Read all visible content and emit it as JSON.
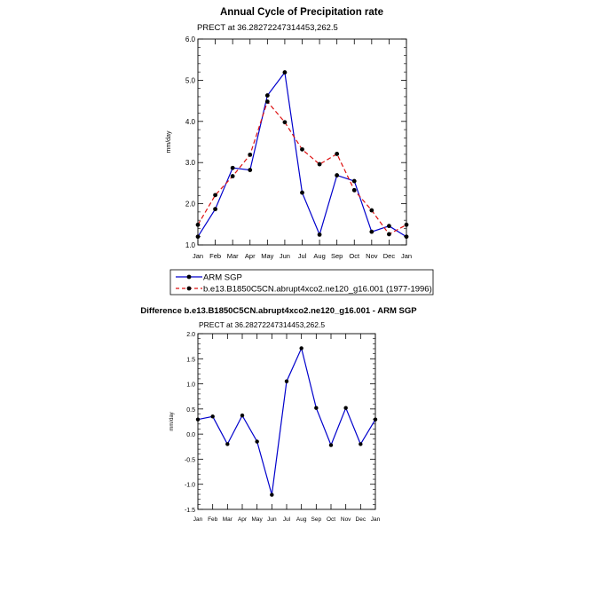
{
  "chart_data": [
    {
      "type": "line",
      "title": "Annual Cycle of Precipitation rate",
      "subtitle": "PRECT at 36.28272247314453,262.5",
      "ylabel": "mm/day",
      "ylim": [
        1.0,
        6.0
      ],
      "yticks": [
        "1.0",
        "2.0",
        "3.0",
        "4.0",
        "5.0",
        "6.0"
      ],
      "categories": [
        "Jan",
        "Feb",
        "Mar",
        "Apr",
        "May",
        "Jun",
        "Jul",
        "Aug",
        "Sep",
        "Oct",
        "Nov",
        "Dec",
        "Jan"
      ],
      "series": [
        {
          "name": "ARM SGP",
          "color": "#0000cc",
          "dash": "solid",
          "values": [
            1.2,
            1.87,
            2.87,
            2.82,
            4.63,
            5.19,
            2.27,
            1.25,
            2.69,
            2.55,
            1.32,
            1.46,
            1.2
          ]
        },
        {
          "name": "b.e13.B1850C5CN.abrupt4xco2.ne120_g16.001 (1977-1996)",
          "color": "#dd1111",
          "dash": "dashed",
          "values": [
            1.49,
            2.21,
            2.67,
            3.19,
            4.48,
            3.98,
            3.32,
            2.96,
            3.21,
            2.33,
            1.84,
            1.26,
            1.49
          ]
        }
      ],
      "legend": "below"
    },
    {
      "type": "line",
      "title": "Difference b.e13.B1850C5CN.abrupt4xco2.ne120_g16.001 - ARM SGP",
      "subtitle": "PRECT at 36.28272247314453,262.5",
      "ylabel": "mm/day",
      "ylim": [
        -1.5,
        2.0
      ],
      "yticks": [
        "-1.5",
        "-1.0",
        "-0.5",
        "0.0",
        "0.5",
        "1.0",
        "1.5",
        "2.0"
      ],
      "categories": [
        "Jan",
        "Feb",
        "Mar",
        "Apr",
        "May",
        "Jun",
        "Jul",
        "Aug",
        "Sep",
        "Oct",
        "Nov",
        "Dec",
        "Jan"
      ],
      "series": [
        {
          "name": "difference",
          "color": "#0000cc",
          "dash": "solid",
          "values": [
            0.29,
            0.35,
            -0.2,
            0.37,
            -0.15,
            -1.21,
            1.05,
            1.71,
            0.52,
            -0.22,
            0.52,
            -0.2,
            0.29
          ]
        }
      ]
    }
  ]
}
